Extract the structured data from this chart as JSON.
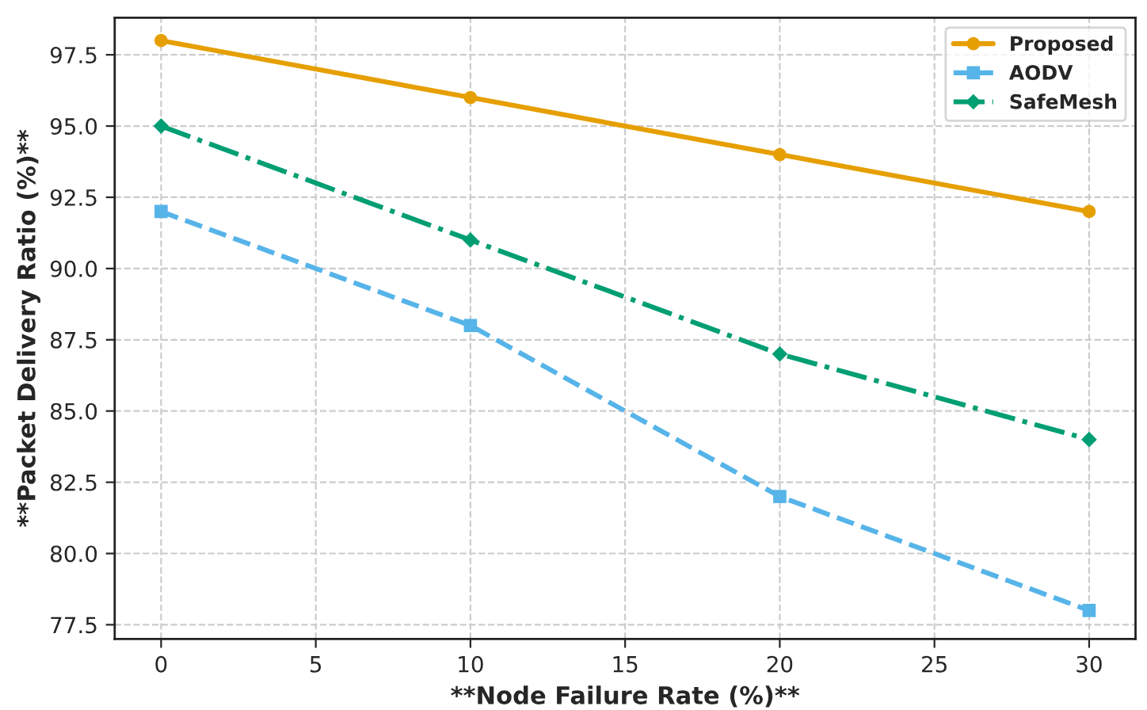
{
  "chart_data": {
    "type": "line",
    "xlabel": "**Node Failure Rate (%)**",
    "ylabel": "**Packet Delivery Ratio (%)**",
    "x": [
      0,
      10,
      20,
      30
    ],
    "series": [
      {
        "name": "Proposed",
        "color": "#e69f00",
        "values": [
          98,
          96,
          94,
          92
        ],
        "marker": "circle",
        "line_style": "solid"
      },
      {
        "name": "AODV",
        "color": "#56b4e9",
        "values": [
          92,
          88,
          82,
          78
        ],
        "marker": "square",
        "line_style": "dashed"
      },
      {
        "name": "SafeMesh",
        "color": "#009e73",
        "values": [
          95,
          91,
          87,
          84
        ],
        "marker": "diamond",
        "line_style": "dashdot"
      }
    ],
    "xlim": [
      -1.5,
      31.5
    ],
    "xticks": [
      0,
      5,
      10,
      15,
      20,
      25,
      30
    ],
    "ylim": [
      77.0,
      98.8
    ],
    "yticks": [
      77.5,
      {
        "value": 80,
        "label": "80.0"
      },
      82.5,
      {
        "value": 85,
        "label": "85.0"
      },
      87.5,
      {
        "value": 90,
        "label": "90.0"
      },
      92.5,
      {
        "value": 95,
        "label": "95.0"
      },
      97.5
    ],
    "grid": true,
    "legend": "top right"
  }
}
